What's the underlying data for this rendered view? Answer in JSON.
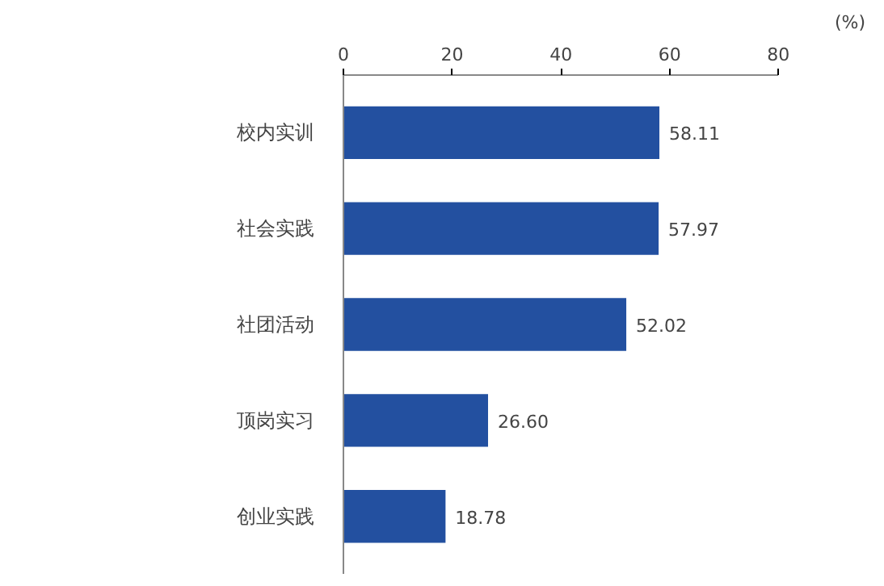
{
  "chart_data": {
    "type": "bar",
    "orientation": "horizontal",
    "xlabel": "(%)",
    "categories": [
      "校内实训",
      "社会实践",
      "社团活动",
      "顶岗实习",
      "创业实践"
    ],
    "values": [
      58.11,
      57.97,
      52.02,
      26.6,
      18.78
    ],
    "value_labels": [
      "58.11",
      "57.97",
      "52.02",
      "26.60",
      "18.78"
    ],
    "color": "#2350a0",
    "xlim": [
      0,
      80
    ],
    "xticks": [
      0,
      20,
      40,
      60,
      80
    ],
    "grid": false
  }
}
